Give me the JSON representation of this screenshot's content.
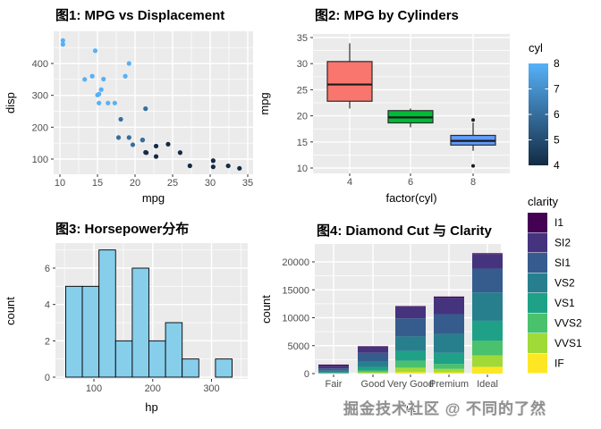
{
  "watermark": {
    "text": "掘金技术社区 @ 不同的了然",
    "color": "#8f8f8f"
  },
  "theme": {
    "panel_bg": "#EBEBEB",
    "grid_color": "#FFFFFF",
    "tick_text_color": "#4D4D4D",
    "title_color": "#000000",
    "tick_mark_color": "#333333"
  },
  "chart_data": [
    {
      "id": "plot1",
      "type": "scatter",
      "title": "图1: MPG vs Displacement",
      "xlabel": "mpg",
      "ylabel": "disp",
      "x_ticks": [
        10,
        15,
        20,
        25,
        30,
        35
      ],
      "x_minor_ticks": [
        12.5,
        17.5,
        22.5,
        27.5,
        32.5
      ],
      "y_ticks": [
        100,
        200,
        300,
        400
      ],
      "y_minor_ticks": [
        50,
        150,
        250,
        350,
        450
      ],
      "xlim": [
        9.2,
        35.7
      ],
      "ylim": [
        52,
        500
      ],
      "color_scale": {
        "name": "cyl",
        "low_value": 4,
        "high_value": 8,
        "low_color": "#132B43",
        "high_color": "#56B1F7"
      },
      "points": [
        {
          "mpg": 21.0,
          "disp": 160.0,
          "cyl": 6
        },
        {
          "mpg": 21.0,
          "disp": 160.0,
          "cyl": 6
        },
        {
          "mpg": 22.8,
          "disp": 108.0,
          "cyl": 4
        },
        {
          "mpg": 21.4,
          "disp": 258.0,
          "cyl": 6
        },
        {
          "mpg": 18.7,
          "disp": 360.0,
          "cyl": 8
        },
        {
          "mpg": 18.1,
          "disp": 225.0,
          "cyl": 6
        },
        {
          "mpg": 14.3,
          "disp": 360.0,
          "cyl": 8
        },
        {
          "mpg": 24.4,
          "disp": 146.7,
          "cyl": 4
        },
        {
          "mpg": 22.8,
          "disp": 140.8,
          "cyl": 4
        },
        {
          "mpg": 19.2,
          "disp": 167.6,
          "cyl": 6
        },
        {
          "mpg": 17.8,
          "disp": 167.6,
          "cyl": 6
        },
        {
          "mpg": 16.4,
          "disp": 275.8,
          "cyl": 8
        },
        {
          "mpg": 17.3,
          "disp": 275.8,
          "cyl": 8
        },
        {
          "mpg": 15.2,
          "disp": 275.8,
          "cyl": 8
        },
        {
          "mpg": 10.4,
          "disp": 472.0,
          "cyl": 8
        },
        {
          "mpg": 10.4,
          "disp": 460.0,
          "cyl": 8
        },
        {
          "mpg": 14.7,
          "disp": 440.0,
          "cyl": 8
        },
        {
          "mpg": 32.4,
          "disp": 78.7,
          "cyl": 4
        },
        {
          "mpg": 30.4,
          "disp": 75.7,
          "cyl": 4
        },
        {
          "mpg": 33.9,
          "disp": 71.1,
          "cyl": 4
        },
        {
          "mpg": 21.5,
          "disp": 120.1,
          "cyl": 4
        },
        {
          "mpg": 15.5,
          "disp": 318.0,
          "cyl": 8
        },
        {
          "mpg": 15.2,
          "disp": 304.0,
          "cyl": 8
        },
        {
          "mpg": 13.3,
          "disp": 350.0,
          "cyl": 8
        },
        {
          "mpg": 19.2,
          "disp": 400.0,
          "cyl": 8
        },
        {
          "mpg": 27.3,
          "disp": 79.0,
          "cyl": 4
        },
        {
          "mpg": 26.0,
          "disp": 120.3,
          "cyl": 4
        },
        {
          "mpg": 30.4,
          "disp": 95.1,
          "cyl": 4
        },
        {
          "mpg": 15.8,
          "disp": 351.0,
          "cyl": 8
        },
        {
          "mpg": 19.7,
          "disp": 145.0,
          "cyl": 6
        },
        {
          "mpg": 15.0,
          "disp": 301.0,
          "cyl": 8
        },
        {
          "mpg": 21.4,
          "disp": 121.0,
          "cyl": 4
        }
      ]
    },
    {
      "id": "plot2",
      "type": "boxplot",
      "title": "图2: MPG by Cylinders",
      "xlabel": "factor(cyl)",
      "ylabel": "mpg",
      "categories": [
        "4",
        "6",
        "8"
      ],
      "y_ticks": [
        10,
        15,
        20,
        25,
        30,
        35
      ],
      "y_minor_ticks": [
        12.5,
        17.5,
        22.5,
        27.5,
        32.5
      ],
      "ylim": [
        9,
        35.5
      ],
      "boxes": [
        {
          "category": "4",
          "color": "#F8766D",
          "whisker_low": 21.4,
          "q1": 22.8,
          "median": 26.0,
          "q3": 30.4,
          "whisker_high": 33.9,
          "outliers": []
        },
        {
          "category": "6",
          "color": "#00BA38",
          "whisker_low": 17.8,
          "q1": 18.65,
          "median": 19.7,
          "q3": 21.0,
          "whisker_high": 21.4,
          "outliers": []
        },
        {
          "category": "8",
          "color": "#619CFF",
          "whisker_low": 13.3,
          "q1": 14.4,
          "median": 15.2,
          "q3": 16.25,
          "whisker_high": 18.7,
          "outliers": [
            19.2,
            10.4
          ]
        }
      ],
      "legend": {
        "title": "cyl",
        "type": "gradient",
        "range": [
          4,
          8
        ],
        "low_color": "#132B43",
        "high_color": "#56B1F7",
        "ticks": [
          8,
          7,
          6,
          5,
          4
        ]
      }
    },
    {
      "id": "plot3",
      "type": "histogram",
      "title": "图3: Horsepower分布",
      "xlabel": "hp",
      "ylabel": "count",
      "x_ticks": [
        100,
        200,
        300
      ],
      "x_minor_ticks": [
        50,
        150,
        250,
        350
      ],
      "y_ticks": [
        0,
        2,
        4,
        6
      ],
      "y_minor_ticks": [
        1,
        3,
        5,
        7
      ],
      "fill": "#87CEEB",
      "stroke": "#000000",
      "bin_start": 52,
      "bin_width": 28.3,
      "counts": [
        5,
        5,
        7,
        2,
        6,
        2,
        3,
        1,
        0,
        1
      ]
    },
    {
      "id": "plot4",
      "type": "stacked_bar",
      "title": "图4: Diamond Cut 与 Clarity",
      "xlabel": "cut",
      "ylabel": "count",
      "categories": [
        "Fair",
        "Good",
        "Very Good",
        "Premium",
        "Ideal"
      ],
      "y_ticks": [
        0,
        5000,
        10000,
        15000,
        20000
      ],
      "y_minor_ticks": [
        2500,
        7500,
        12500,
        17500
      ],
      "ylim": [
        0,
        22500
      ],
      "totals": [
        1610,
        4906,
        12082,
        13791,
        21551
      ],
      "series_top_to_bottom": [
        {
          "name": "I1",
          "color": "#440154",
          "values": [
            210,
            96,
            84,
            205,
            146
          ]
        },
        {
          "name": "SI2",
          "color": "#46337E",
          "values": [
            466,
            1081,
            2100,
            2949,
            2598
          ]
        },
        {
          "name": "SI1",
          "color": "#365C8D",
          "values": [
            408,
            1560,
            3240,
            3575,
            4282
          ]
        },
        {
          "name": "VS2",
          "color": "#277F8E",
          "values": [
            261,
            978,
            2591,
            3357,
            5071
          ]
        },
        {
          "name": "VS1",
          "color": "#1FA187",
          "values": [
            170,
            648,
            1775,
            1989,
            3589
          ]
        },
        {
          "name": "VVS2",
          "color": "#4AC16D",
          "values": [
            69,
            286,
            1235,
            870,
            2606
          ]
        },
        {
          "name": "VVS1",
          "color": "#A0DA39",
          "values": [
            17,
            186,
            789,
            616,
            2047
          ]
        },
        {
          "name": "IF",
          "color": "#FDE725",
          "values": [
            9,
            71,
            268,
            230,
            1212
          ]
        }
      ],
      "legend": {
        "title": "clarity",
        "labels": [
          "I1",
          "SI2",
          "SI1",
          "VS2",
          "VS1",
          "VVS2",
          "VVS1",
          "IF"
        ]
      }
    }
  ]
}
